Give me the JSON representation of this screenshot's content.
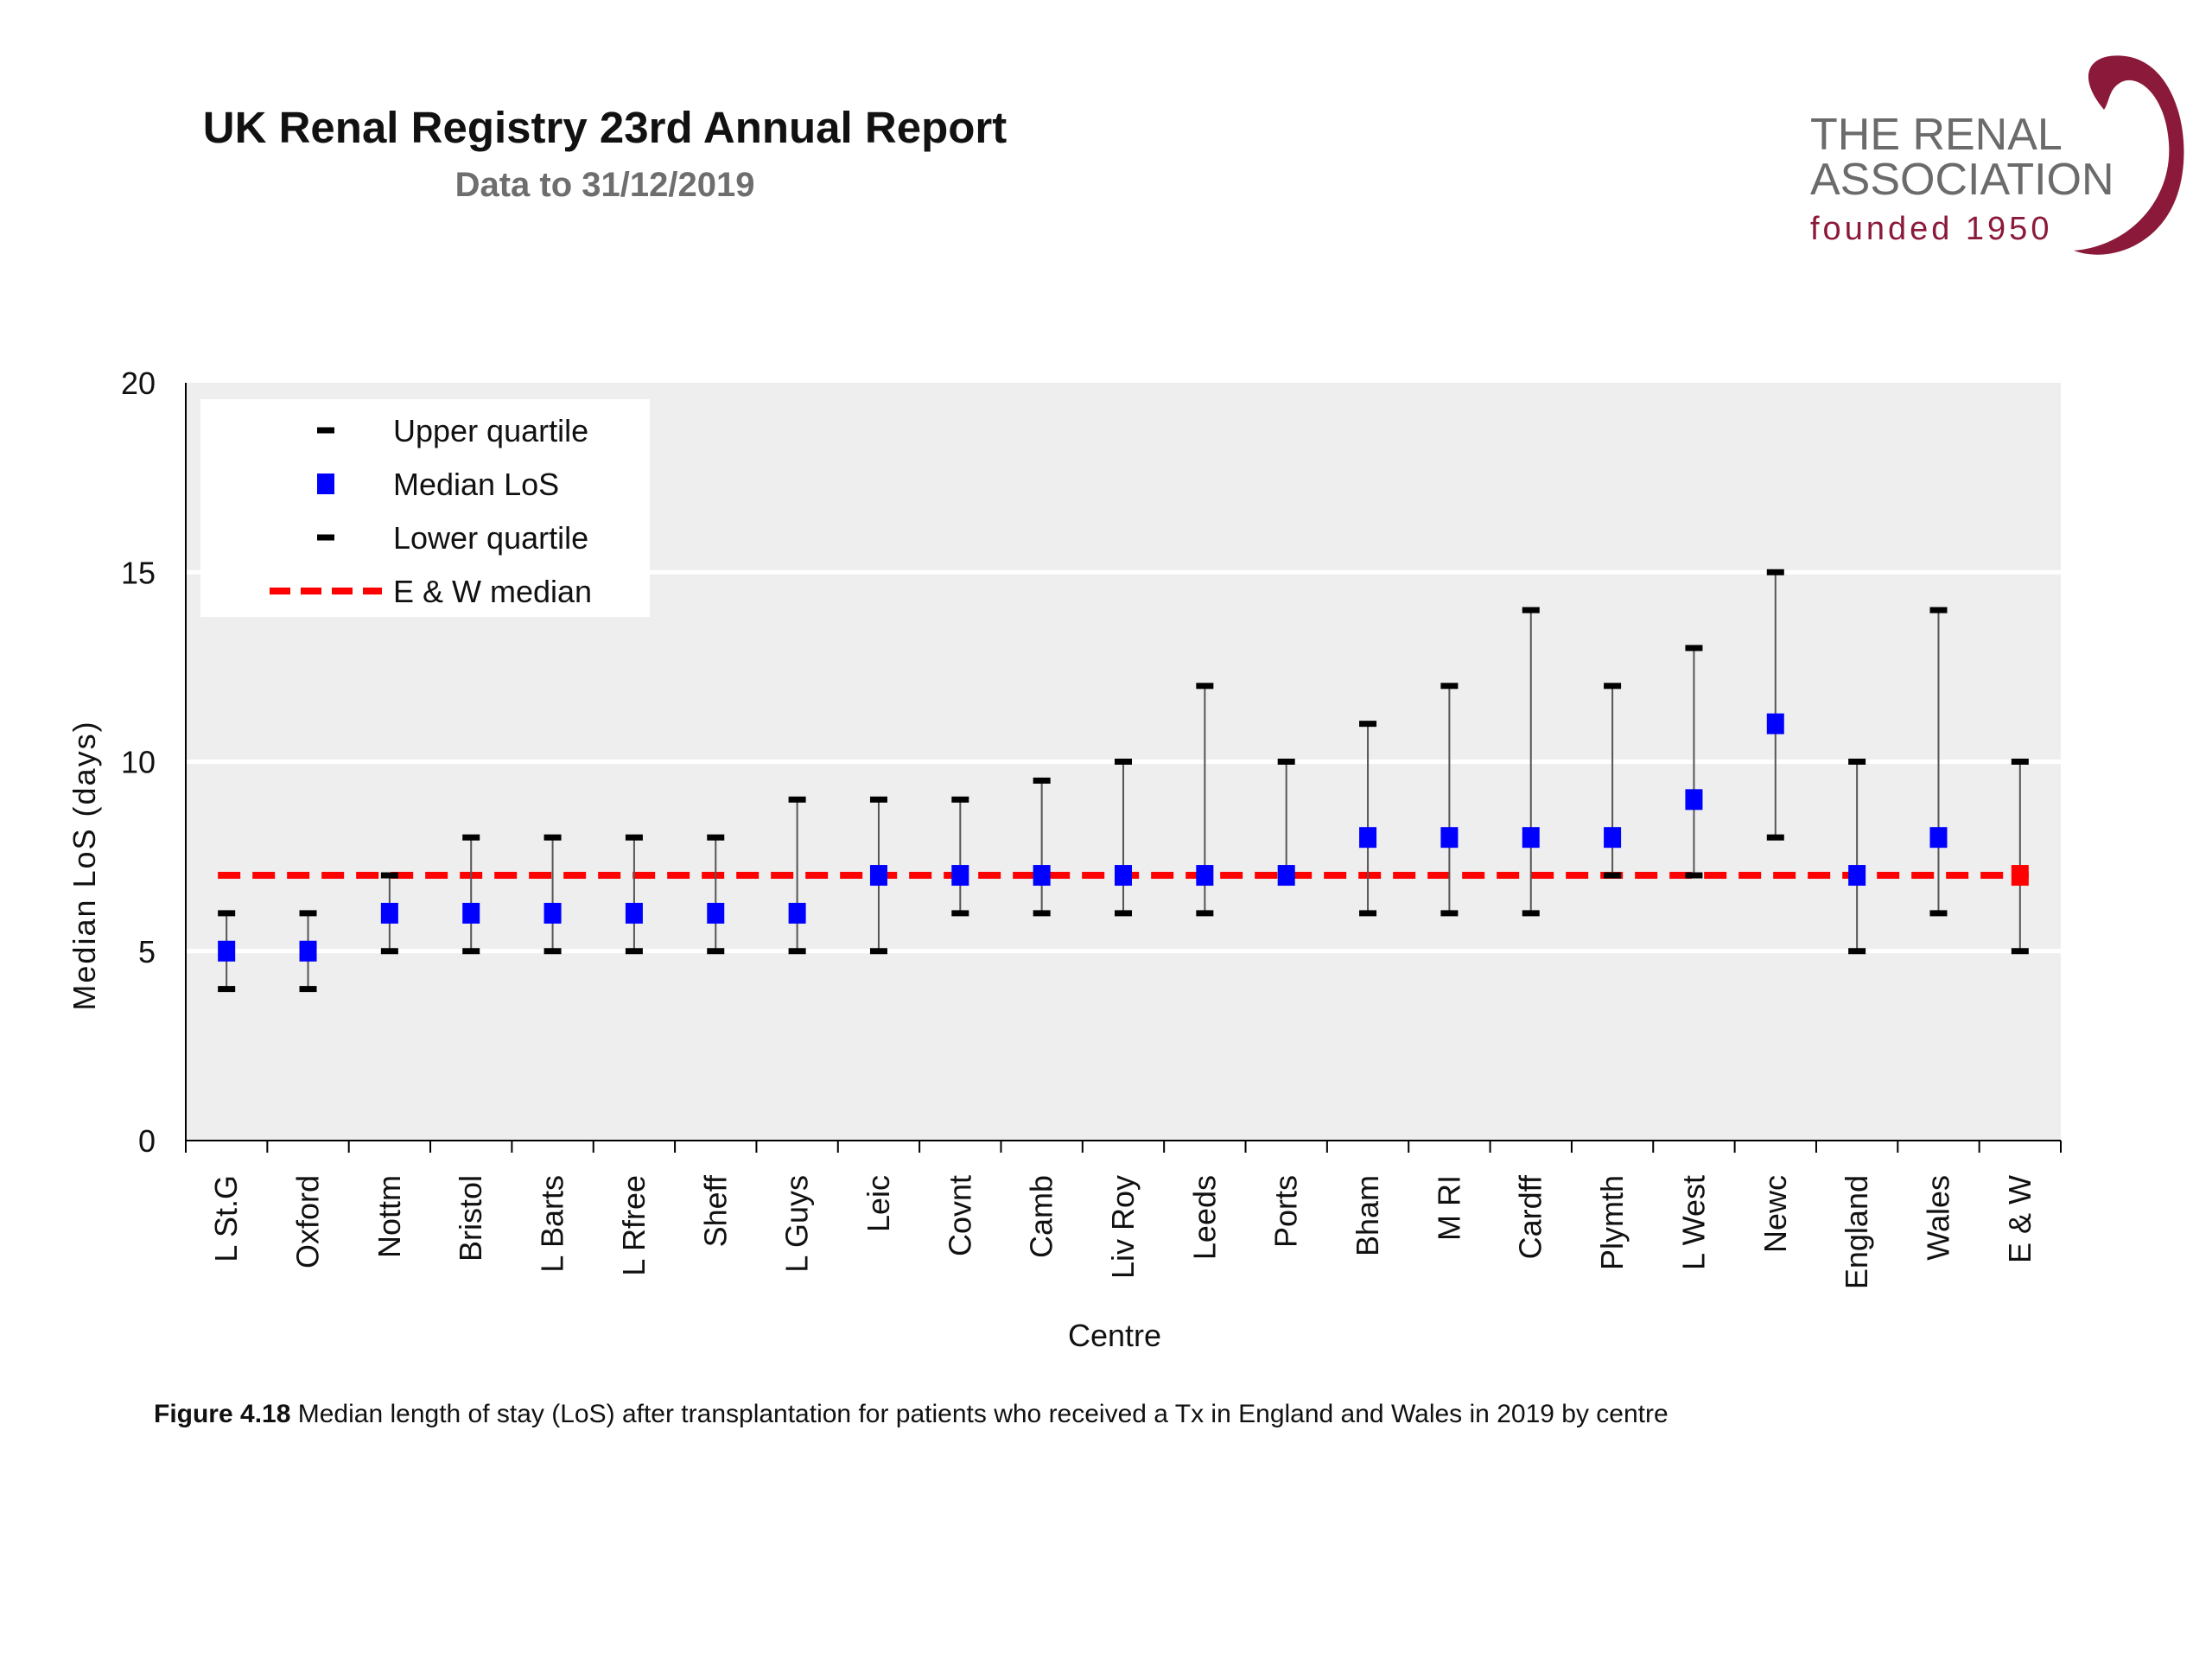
{
  "header": {
    "title": "UK Renal Registry 23rd Annual Report",
    "subtitle": "Data to 31/12/2019"
  },
  "logo": {
    "line1": "THE RENAL",
    "line2": "ASSOCIATION",
    "line3": "founded 1950"
  },
  "caption": {
    "label": "Figure 4.18",
    "text": " Median length of stay (LoS) after transplantation for patients who received a Tx in England and Wales in 2019 by centre"
  },
  "colors": {
    "plot_background": "#eeeeee",
    "median_marker": "#0000ff",
    "ew_marker": "#ff0000",
    "ew_median_line": "#ff0000",
    "quartile_marker": "#000000",
    "whisker": "#555555",
    "logo_red": "#8b1a3a",
    "logo_grey": "#6b6b6b"
  },
  "chart_data": {
    "type": "scatter",
    "xlabel": "Centre",
    "ylabel": "Median LoS (days)",
    "ylim": [
      0,
      20
    ],
    "yticks": [
      0,
      5,
      10,
      15,
      20
    ],
    "grid": true,
    "legend_position": "top-left",
    "legend": [
      {
        "label": "Upper quartile",
        "marker": "dash"
      },
      {
        "label": "Median LoS",
        "marker": "square"
      },
      {
        "label": "Lower quartile",
        "marker": "dash"
      },
      {
        "label": "E & W median",
        "marker": "dashed-line"
      }
    ],
    "categories": [
      "L St.G",
      "Oxford",
      "Nottm",
      "Bristol",
      "L Barts",
      "L Rfree",
      "Sheff",
      "L Guys",
      "Leic",
      "Covnt",
      "Camb",
      "Liv Roy",
      "Leeds",
      "Ports",
      "Bham",
      "M RI",
      "Cardff",
      "Plymth",
      "L West",
      "Newc",
      "England",
      "Wales",
      "E & W"
    ],
    "series": [
      {
        "name": "Upper quartile",
        "values": [
          6,
          6,
          7,
          8,
          8,
          8,
          8,
          9,
          9,
          9,
          9.5,
          10,
          12,
          10,
          11,
          12,
          14,
          12,
          13,
          15,
          10,
          14,
          10
        ]
      },
      {
        "name": "Median LoS",
        "values": [
          5,
          5,
          6,
          6,
          6,
          6,
          6,
          6,
          7,
          7,
          7,
          7,
          7,
          7,
          8,
          8,
          8,
          8,
          9,
          11,
          7,
          8,
          7
        ]
      },
      {
        "name": "Lower quartile",
        "values": [
          4,
          4,
          5,
          5,
          5,
          5,
          5,
          5,
          5,
          6,
          6,
          6,
          6,
          7,
          6,
          6,
          6,
          7,
          7,
          8,
          5,
          6,
          5
        ]
      }
    ],
    "reference_line": {
      "name": "E & W median",
      "value": 7
    },
    "highlight_category": "E & W"
  }
}
